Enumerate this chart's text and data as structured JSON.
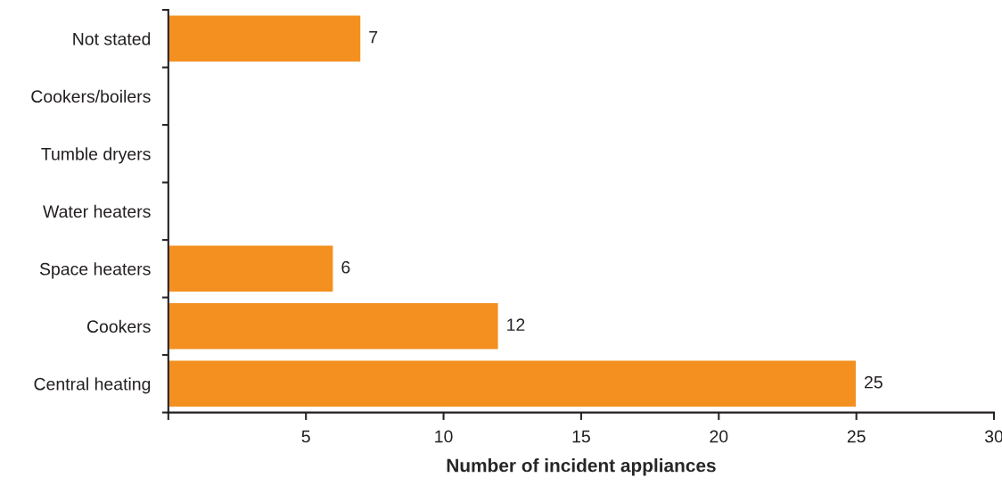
{
  "chart_data": {
    "type": "bar",
    "orientation": "horizontal",
    "xlabel": "Number of incident appliances",
    "categories": [
      "Not stated",
      "Cookers/boilers",
      "Tumble dryers",
      "Water heaters",
      "Space heaters",
      "Cookers",
      "Central heating"
    ],
    "values": [
      7,
      null,
      null,
      null,
      6,
      12,
      25
    ],
    "value_labels": [
      "7",
      null,
      null,
      null,
      "6",
      "12",
      "25"
    ],
    "color": "#f39020",
    "xlim": [
      0,
      30
    ],
    "xticks": [
      {
        "value": 0,
        "label": null
      },
      5,
      10,
      15,
      20,
      25,
      30
    ],
    "grid": false
  }
}
